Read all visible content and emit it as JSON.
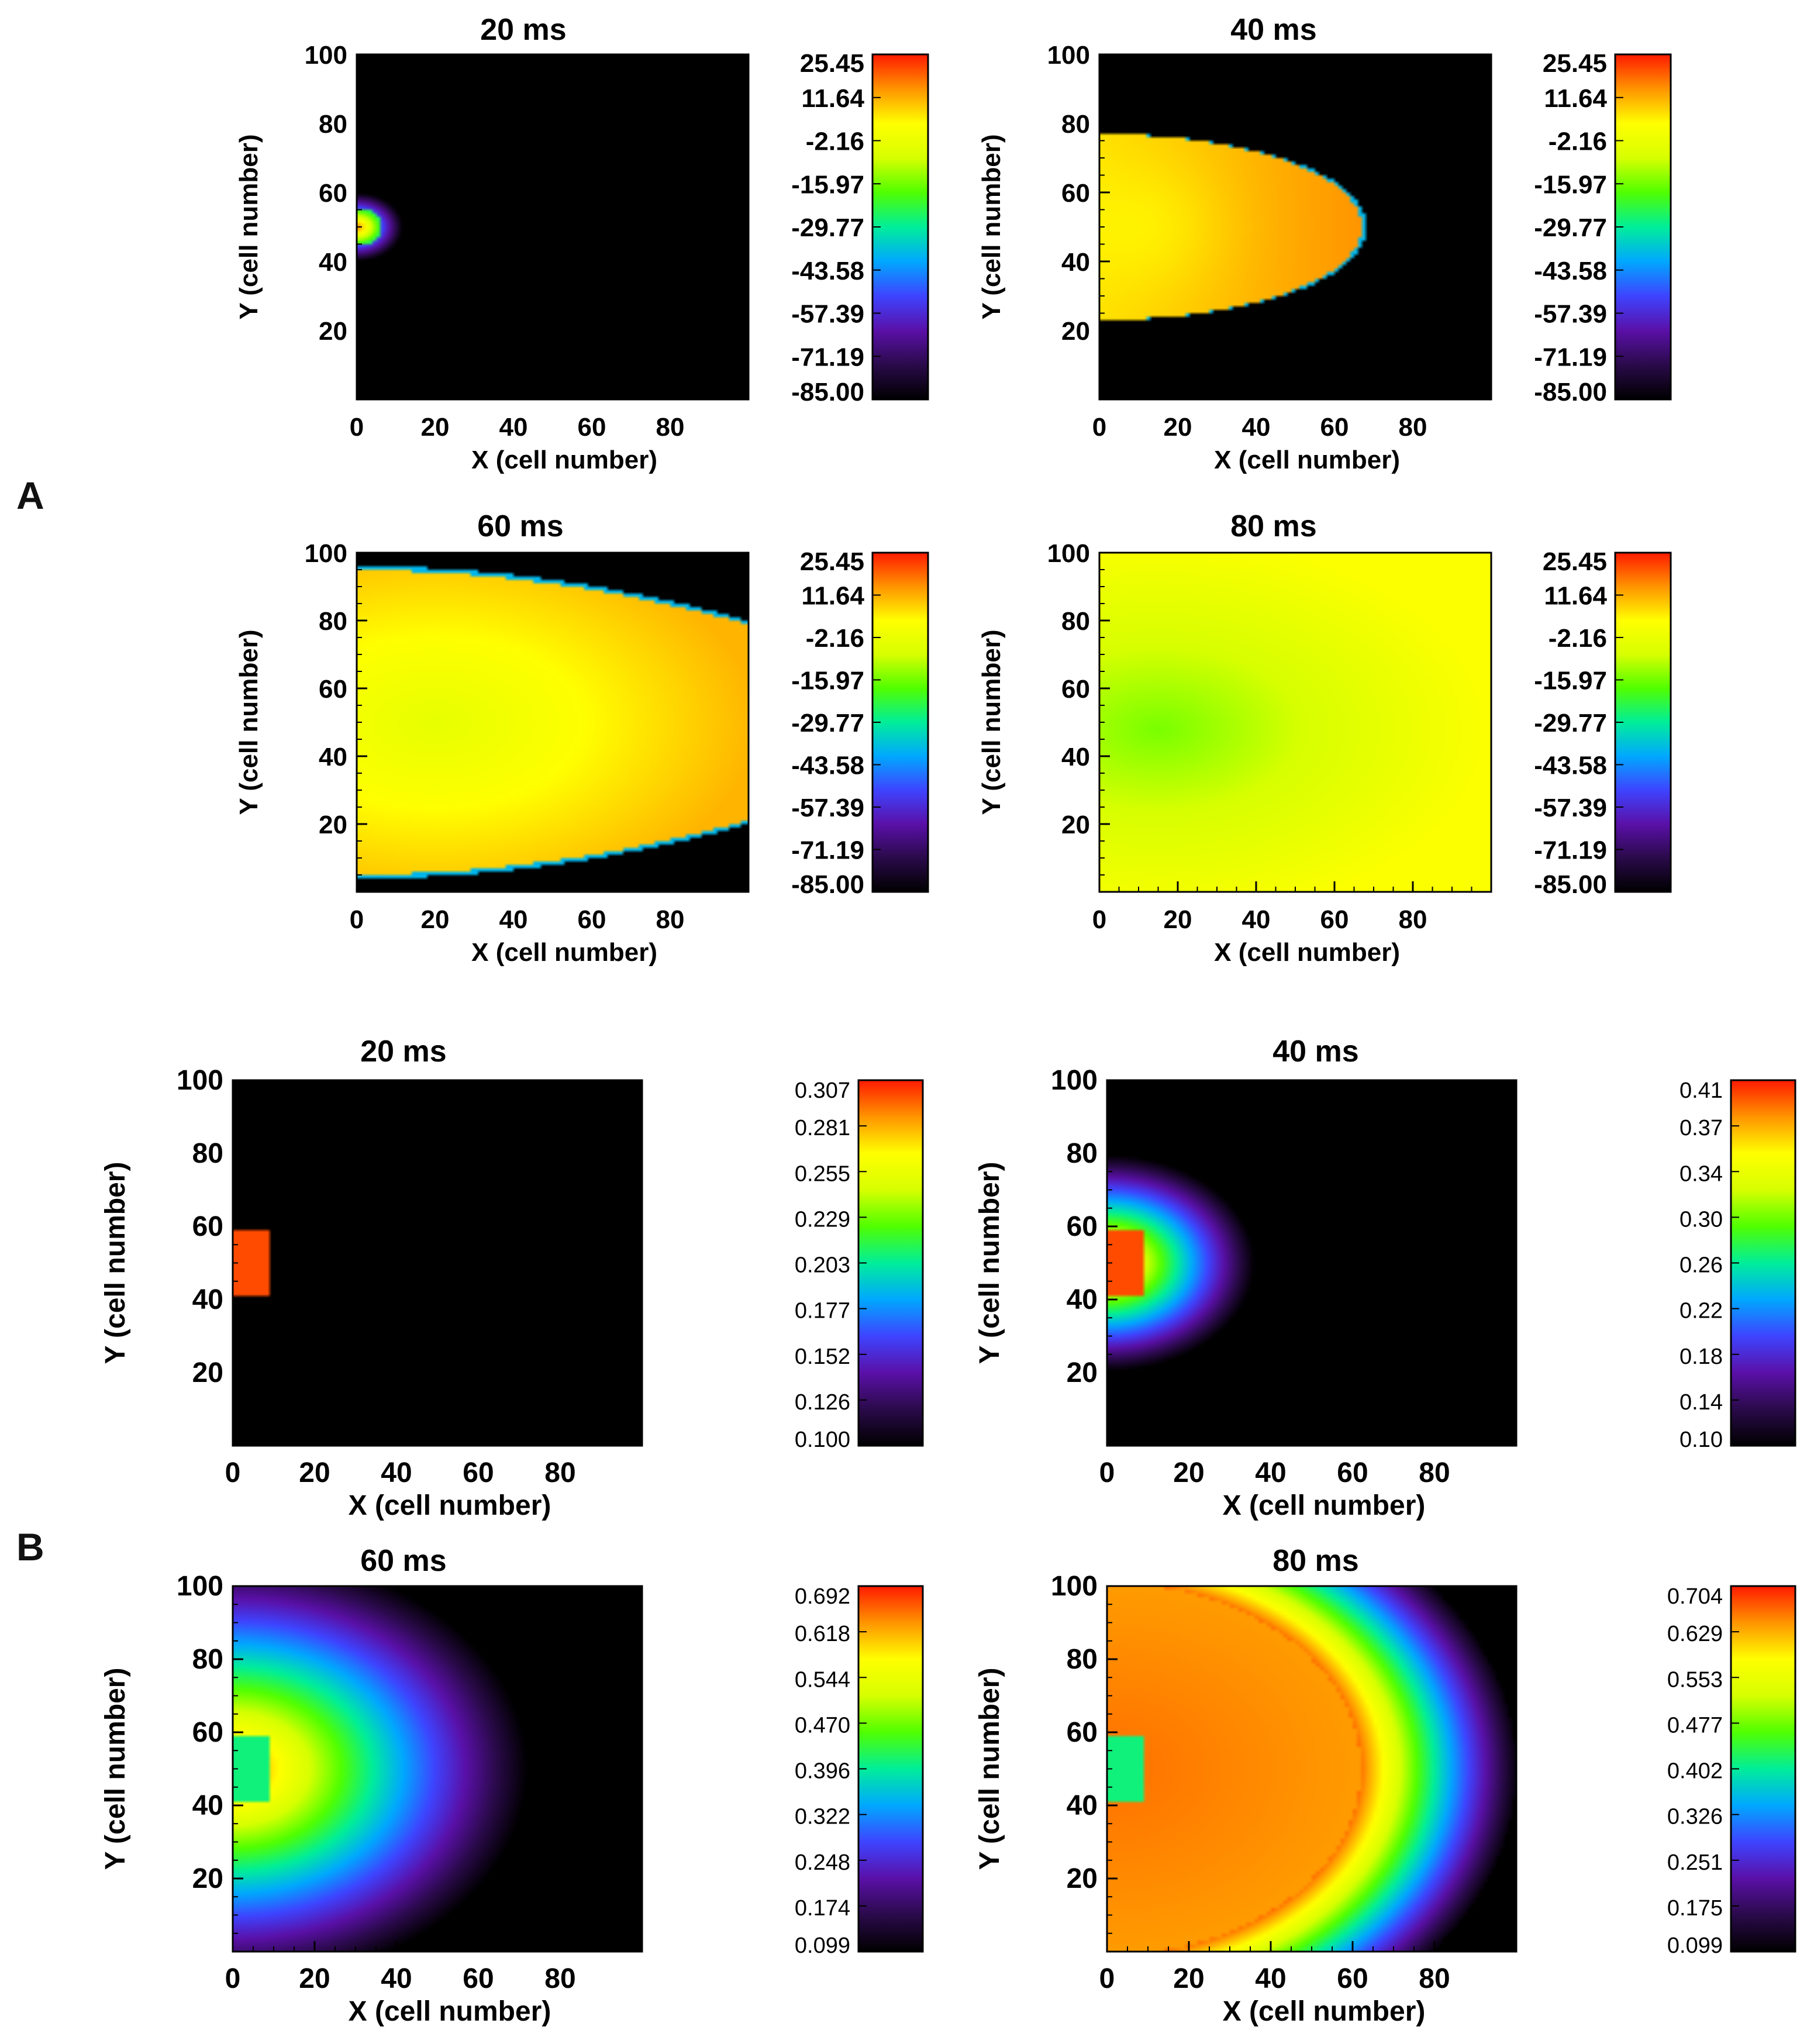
{
  "figure": {
    "panel_labels": [
      "A",
      "B"
    ]
  },
  "axis_common": {
    "xlabel": "X (cell number)",
    "ylabel": "Y (cell number)",
    "xticks": [
      "0",
      "20",
      "40",
      "60",
      "80"
    ],
    "yticks": [
      "20",
      "40",
      "60",
      "80",
      "100"
    ]
  },
  "colormap": [
    "#000000",
    "#2a0a4a",
    "#5a10a8",
    "#3e44ff",
    "#00a8ff",
    "#00ee9a",
    "#50ff00",
    "#d7ff00",
    "#ffff00",
    "#ff9400",
    "#ff1a00"
  ],
  "chart_data": [
    {
      "type": "heatmap",
      "panel": "A",
      "title": "20 ms",
      "xlabel": "X (cell number)",
      "ylabel": "Y (cell number)",
      "xlim": [
        0,
        100
      ],
      "ylim": [
        0,
        100
      ],
      "colorbar_ticks": [
        "25.45",
        "11.64",
        "-2.16",
        "-15.97",
        "-29.77",
        "-43.58",
        "-57.39",
        "-71.19",
        "-85.00"
      ],
      "description_values": {
        "wavefront_x_max": 5,
        "center_y": 50
      }
    },
    {
      "type": "heatmap",
      "panel": "A",
      "title": "40 ms",
      "xlabel": "X (cell number)",
      "ylabel": "Y (cell number)",
      "xlim": [
        0,
        100
      ],
      "ylim": [
        0,
        100
      ],
      "colorbar_ticks": [
        "25.45",
        "11.64",
        "-2.16",
        "-15.97",
        "-29.77",
        "-43.58",
        "-57.39",
        "-71.19",
        "-85.00"
      ],
      "description_values": {
        "wavefront_x_max": 68,
        "wavefront_y_range": [
          23,
          77
        ]
      }
    },
    {
      "type": "heatmap",
      "panel": "A",
      "title": "60 ms",
      "xlabel": "X (cell number)",
      "ylabel": "Y (cell number)",
      "xlim": [
        0,
        100
      ],
      "ylim": [
        0,
        100
      ],
      "colorbar_ticks": [
        "25.45",
        "11.64",
        "-2.16",
        "-15.97",
        "-29.77",
        "-43.58",
        "-57.39",
        "-71.19",
        "-85.00"
      ],
      "description_values": {
        "wavefront_y_range_at_x0": [
          4,
          96
        ],
        "wavefront_y_range_at_x100": [
          20,
          80
        ]
      }
    },
    {
      "type": "heatmap",
      "panel": "A",
      "title": "80 ms",
      "xlabel": "X (cell number)",
      "ylabel": "Y (cell number)",
      "xlim": [
        0,
        100
      ],
      "ylim": [
        0,
        100
      ],
      "colorbar_ticks": [
        "25.45",
        "11.64",
        "-2.16",
        "-15.97",
        "-29.77",
        "-43.58",
        "-57.39",
        "-71.19",
        "-85.00"
      ],
      "description_values": {
        "fully_activated": 1
      }
    },
    {
      "type": "heatmap",
      "panel": "B",
      "title": "20 ms",
      "xlabel": "X (cell number)",
      "ylabel": "Y (cell number)",
      "xlim": [
        0,
        100
      ],
      "ylim": [
        0,
        100
      ],
      "colorbar_ticks": [
        "0.307",
        "0.281",
        "0.255",
        "0.229",
        "0.203",
        "0.177",
        "0.152",
        "0.126",
        "0.100"
      ],
      "description_values": {
        "source_x_range": [
          0,
          9
        ],
        "source_y_range": [
          41,
          59
        ],
        "spread_radius": 0
      }
    },
    {
      "type": "heatmap",
      "panel": "B",
      "title": "40 ms",
      "xlabel": "X (cell number)",
      "ylabel": "Y (cell number)",
      "xlim": [
        0,
        100
      ],
      "ylim": [
        0,
        100
      ],
      "colorbar_ticks": [
        "0.41",
        "0.37",
        "0.34",
        "0.30",
        "0.26",
        "0.22",
        "0.18",
        "0.14",
        "0.10"
      ],
      "description_values": {
        "source_x_range": [
          0,
          9
        ],
        "source_y_range": [
          41,
          59
        ],
        "spread_radius": 36
      }
    },
    {
      "type": "heatmap",
      "panel": "B",
      "title": "60 ms",
      "xlabel": "X (cell number)",
      "ylabel": "Y (cell number)",
      "xlim": [
        0,
        100
      ],
      "ylim": [
        0,
        100
      ],
      "colorbar_ticks": [
        "0.692",
        "0.618",
        "0.544",
        "0.470",
        "0.396",
        "0.322",
        "0.248",
        "0.174",
        "0.099"
      ],
      "description_values": {
        "source_x_range": [
          0,
          9
        ],
        "source_y_range": [
          41,
          59
        ],
        "spread_radius": 72
      }
    },
    {
      "type": "heatmap",
      "panel": "B",
      "title": "80 ms",
      "xlabel": "X (cell number)",
      "ylabel": "Y (cell number)",
      "xlim": [
        0,
        100
      ],
      "ylim": [
        0,
        100
      ],
      "colorbar_ticks": [
        "0.704",
        "0.629",
        "0.553",
        "0.477",
        "0.402",
        "0.326",
        "0.251",
        "0.175",
        "0.099"
      ],
      "description_values": {
        "source_x_range": [
          0,
          9
        ],
        "source_y_range": [
          41,
          59
        ],
        "spread_radius": 100
      }
    }
  ]
}
